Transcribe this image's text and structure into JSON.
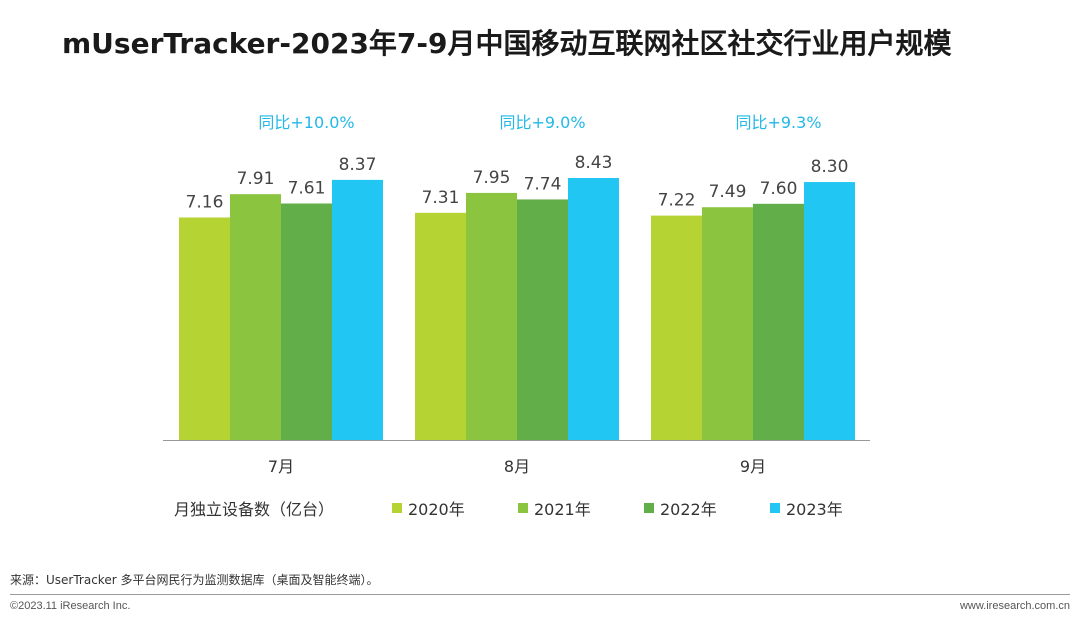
{
  "title": "mUserTracker-2023年7-9月中国移动互联网社区社交行业用户规模",
  "chart_data": {
    "type": "bar",
    "categories": [
      "7月",
      "8月",
      "9月"
    ],
    "series": [
      {
        "name": "2020年",
        "values": [
          7.16,
          7.31,
          7.22
        ],
        "color": "#b6d334"
      },
      {
        "name": "2021年",
        "values": [
          7.91,
          7.95,
          7.49
        ],
        "color": "#8bc540"
      },
      {
        "name": "2022年",
        "values": [
          7.61,
          7.74,
          7.6
        ],
        "color": "#62ae48"
      },
      {
        "name": "2023年",
        "values": [
          8.37,
          8.43,
          8.3
        ],
        "color": "#22c6f2"
      }
    ],
    "annotations": [
      "同比+10.0%",
      "同比+9.0%",
      "同比+9.3%"
    ],
    "annotation_color": "#22b8e8",
    "ylabel": "月独立设备数（亿台）",
    "ylim": [
      0,
      8.43
    ],
    "grid": false,
    "legend_position": "bottom"
  },
  "footer": {
    "source": "来源：UserTracker 多平台网民行为监测数据库（桌面及智能终端）。",
    "copyright": "©2023.11 iResearch Inc.",
    "website": "www.iresearch.com.cn"
  }
}
